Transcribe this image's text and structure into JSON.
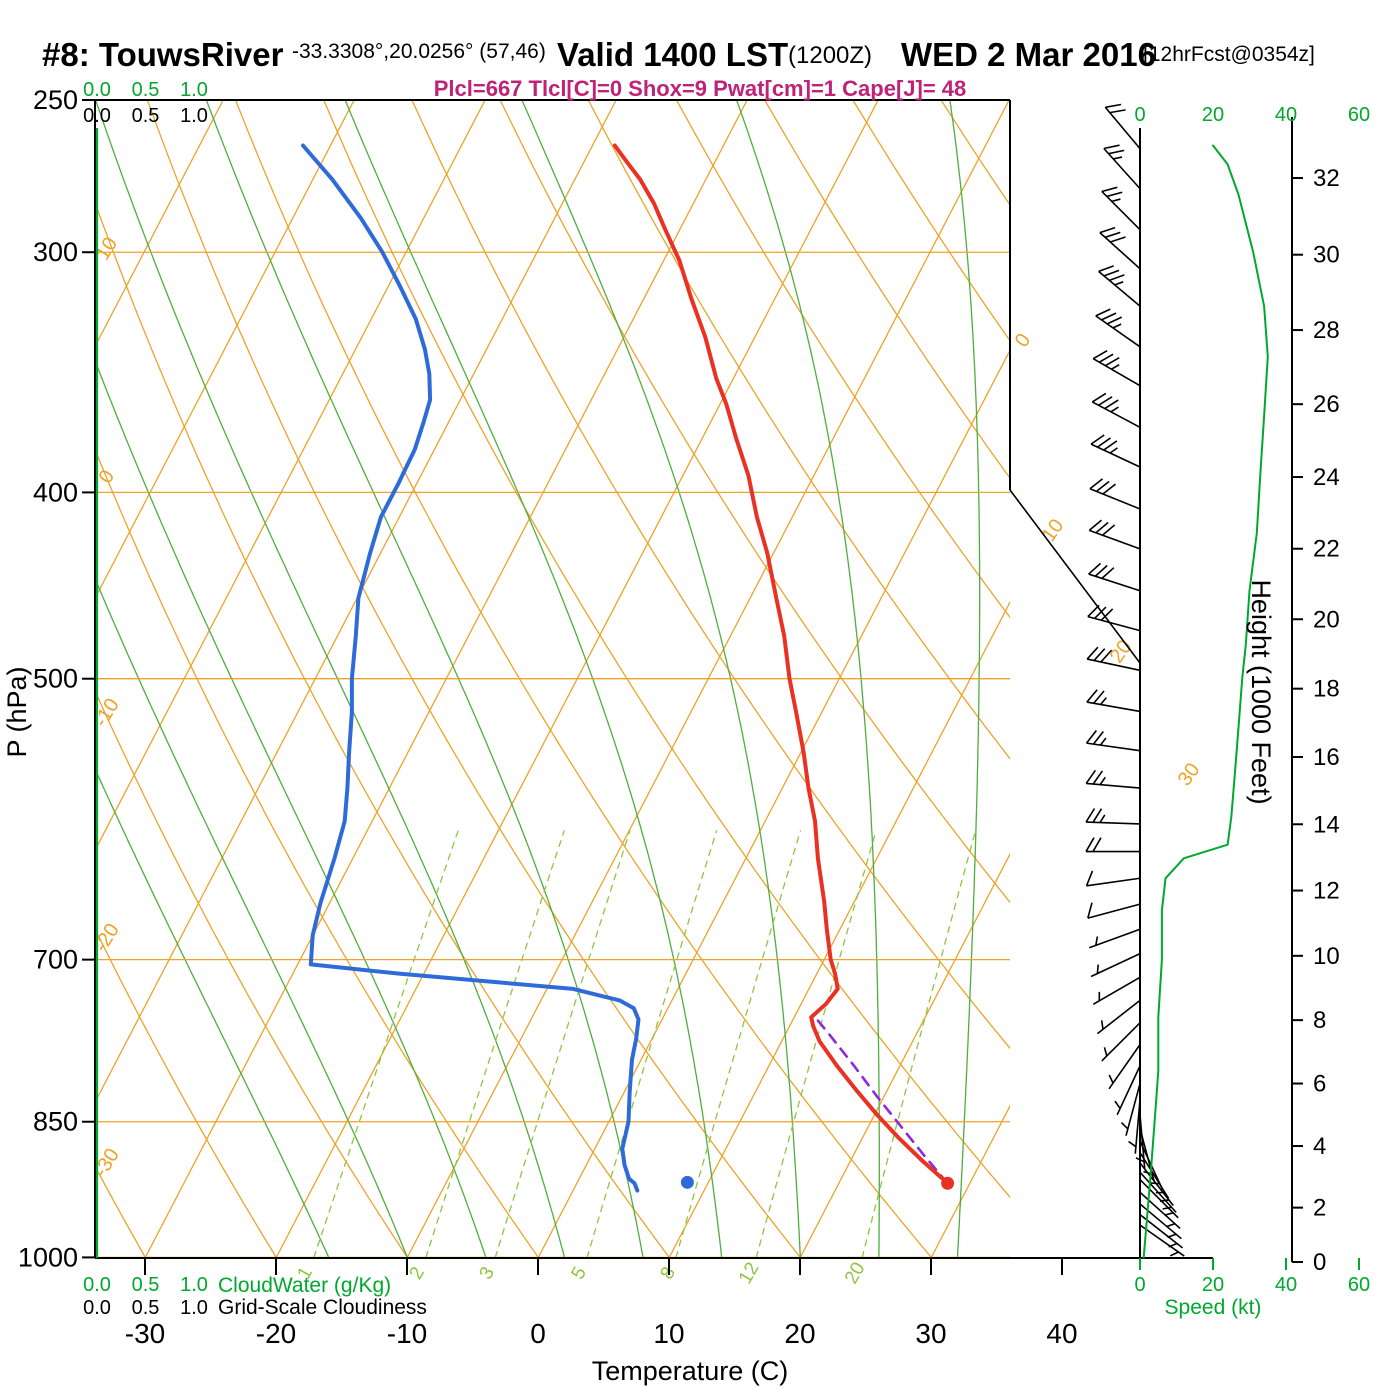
{
  "header": {
    "station": "#8: TouwsRiver",
    "coords": "-33.3308°,20.0256° (57,46)",
    "valid": "Valid 1400 LST",
    "zulu": "(1200Z)",
    "date": "WED 2 Mar 2016",
    "fcst": "[12hrFcst@0354z]",
    "params": "Plcl=667 Tlcl[C]=0 Shox=9 Pwat[cm]=1 Cape[J]= 48"
  },
  "axes": {
    "pressure_label": "P (hPa)",
    "pressure_ticks": [
      250,
      300,
      400,
      500,
      700,
      850,
      1000
    ],
    "temp_label": "Temperature (C)",
    "temp_ticks": [
      -30,
      -20,
      -10,
      0,
      10,
      20,
      30,
      40
    ],
    "height_label": "Height (1000 Feet)",
    "height_ticks": [
      0,
      2,
      4,
      6,
      8,
      10,
      12,
      14,
      16,
      18,
      20,
      22,
      24,
      26,
      28,
      30,
      32
    ],
    "speed_label": "Speed (kt)",
    "speed_ticks": [
      0,
      20,
      40,
      60
    ],
    "cloud_scale": [
      "0.0",
      "0.5",
      "1.0"
    ],
    "cloudwater_label": "CloudWater (g/Kg)",
    "cloudiness_label": "Grid-Scale Cloudiness"
  },
  "chart_data": {
    "type": "skewt",
    "pressure_range_hpa": [
      250,
      1000
    ],
    "temp_axis_range_c": [
      -35,
      40
    ],
    "derived": {
      "lcl_hpa": 667,
      "tlcl_c": 0,
      "showalter": 9,
      "pwat_cm": 1,
      "cape_j": 48
    },
    "temperature_profile": [
      [
        915,
        28.3
      ],
      [
        890,
        25.4
      ],
      [
        866,
        22.7
      ],
      [
        843,
        20.2
      ],
      [
        820,
        17.8
      ],
      [
        795,
        15.2
      ],
      [
        772,
        12.9
      ],
      [
        758,
        11.8
      ],
      [
        750,
        11.3
      ],
      [
        738,
        11.9
      ],
      [
        725,
        12.2
      ],
      [
        712,
        11.4
      ],
      [
        700,
        10.5
      ],
      [
        675,
        9.0
      ],
      [
        653,
        7.7
      ],
      [
        620,
        5.5
      ],
      [
        593,
        3.8
      ],
      [
        570,
        2.0
      ],
      [
        546,
        0.2
      ],
      [
        520,
        -2.0
      ],
      [
        500,
        -3.8
      ],
      [
        475,
        -5.9
      ],
      [
        454,
        -8.0
      ],
      [
        430,
        -10.5
      ],
      [
        412,
        -12.7
      ],
      [
        392,
        -15.0
      ],
      [
        375,
        -17.4
      ],
      [
        360,
        -19.5
      ],
      [
        349,
        -21.3
      ],
      [
        332,
        -23.8
      ],
      [
        317,
        -26.4
      ],
      [
        303,
        -28.8
      ],
      [
        292,
        -31.1
      ],
      [
        283,
        -33.0
      ],
      [
        275,
        -35.0
      ],
      [
        269,
        -36.8
      ],
      [
        264,
        -38.3
      ]
    ],
    "dewpoint_profile": [
      [
        923,
        4.9
      ],
      [
        915,
        4.4
      ],
      [
        910,
        3.8
      ],
      [
        895,
        2.9
      ],
      [
        878,
        2.1
      ],
      [
        850,
        1.5
      ],
      [
        820,
        0.4
      ],
      [
        789,
        -0.7
      ],
      [
        770,
        -1.2
      ],
      [
        752,
        -1.8
      ],
      [
        742,
        -2.6
      ],
      [
        735,
        -4.0
      ],
      [
        725,
        -8.0
      ],
      [
        712,
        -21.8
      ],
      [
        704,
        -29.0
      ],
      [
        680,
        -30.0
      ],
      [
        654,
        -30.7
      ],
      [
        620,
        -31.4
      ],
      [
        593,
        -32.1
      ],
      [
        570,
        -33.2
      ],
      [
        546,
        -34.5
      ],
      [
        520,
        -35.9
      ],
      [
        500,
        -37.2
      ],
      [
        475,
        -38.6
      ],
      [
        454,
        -39.9
      ],
      [
        430,
        -40.8
      ],
      [
        412,
        -41.4
      ],
      [
        395,
        -41.4
      ],
      [
        380,
        -41.5
      ],
      [
        368,
        -41.9
      ],
      [
        358,
        -42.3
      ],
      [
        347,
        -43.4
      ],
      [
        337,
        -44.7
      ],
      [
        325,
        -46.6
      ],
      [
        313,
        -49.0
      ],
      [
        300,
        -51.8
      ],
      [
        288,
        -54.8
      ],
      [
        275,
        -58.5
      ],
      [
        264,
        -62.1
      ]
    ],
    "parcel_trace": [
      [
        915,
        28.3
      ],
      [
        885,
        25.4
      ],
      [
        855,
        22.5
      ],
      [
        825,
        19.5
      ],
      [
        795,
        16.5
      ],
      [
        765,
        13.3
      ],
      [
        750,
        11.6
      ]
    ],
    "surface_temp_point": [
      915,
      28.3
    ],
    "surface_dewpoint_point": [
      914,
      8.4
    ],
    "wind_barbs": [
      [
        265,
        320,
        20
      ],
      [
        278,
        318,
        25
      ],
      [
        292,
        315,
        25
      ],
      [
        306,
        312,
        30
      ],
      [
        320,
        310,
        33
      ],
      [
        336,
        305,
        35
      ],
      [
        352,
        300,
        35
      ],
      [
        370,
        298,
        34
      ],
      [
        388,
        295,
        33
      ],
      [
        408,
        292,
        32
      ],
      [
        428,
        290,
        30
      ],
      [
        450,
        288,
        30
      ],
      [
        472,
        285,
        29
      ],
      [
        495,
        282,
        28
      ],
      [
        520,
        280,
        27
      ],
      [
        545,
        278,
        26
      ],
      [
        570,
        275,
        26
      ],
      [
        595,
        272,
        25
      ],
      [
        615,
        270,
        20
      ],
      [
        635,
        262,
        10
      ],
      [
        655,
        255,
        8
      ],
      [
        675,
        250,
        7
      ],
      [
        695,
        245,
        7
      ],
      [
        715,
        240,
        6
      ],
      [
        735,
        232,
        6
      ],
      [
        755,
        225,
        6
      ],
      [
        775,
        215,
        5
      ],
      [
        795,
        205,
        5
      ],
      [
        812,
        195,
        5
      ],
      [
        828,
        185,
        5
      ],
      [
        843,
        175,
        5
      ],
      [
        857,
        165,
        5
      ],
      [
        870,
        155,
        5
      ],
      [
        882,
        148,
        5
      ],
      [
        893,
        142,
        5
      ],
      [
        903,
        138,
        5
      ],
      [
        911,
        135,
        5
      ],
      [
        925,
        132,
        5
      ],
      [
        938,
        130,
        4
      ],
      [
        950,
        128,
        3
      ],
      [
        962,
        125,
        3
      ]
    ],
    "speed_profile_kt": [
      [
        264,
        20
      ],
      [
        270,
        24
      ],
      [
        280,
        27
      ],
      [
        300,
        31
      ],
      [
        320,
        34
      ],
      [
        340,
        35
      ],
      [
        365,
        34
      ],
      [
        390,
        33
      ],
      [
        420,
        32
      ],
      [
        450,
        30
      ],
      [
        480,
        29
      ],
      [
        500,
        28
      ],
      [
        530,
        27
      ],
      [
        560,
        26
      ],
      [
        590,
        25
      ],
      [
        610,
        24
      ],
      [
        620,
        12
      ],
      [
        635,
        7
      ],
      [
        660,
        6
      ],
      [
        700,
        6
      ],
      [
        750,
        5
      ],
      [
        800,
        5
      ],
      [
        850,
        4
      ],
      [
        900,
        3
      ],
      [
        950,
        2
      ],
      [
        1000,
        1
      ]
    ],
    "grid": {
      "isobar_lines": [
        300,
        400,
        500,
        700,
        850,
        1000
      ],
      "isotherm_values": [
        -80,
        -70,
        -60,
        -50,
        -40,
        -30,
        -20,
        -10,
        0,
        10,
        20,
        30,
        40
      ],
      "dry_adiabat_values": [
        -40,
        -30,
        -20,
        -10,
        0,
        10,
        20,
        30,
        40,
        50,
        60,
        70,
        80,
        90,
        100,
        110,
        120
      ],
      "moist_adiabat_values": [
        -16,
        -10,
        -4,
        2,
        8,
        14,
        20,
        26,
        32
      ],
      "mixing_ratio_values": [
        1,
        2,
        3,
        5,
        8,
        12,
        20
      ],
      "isotherm_edge_labels": [
        0,
        10,
        20,
        30
      ],
      "dry_adiabat_edge_labels": [
        10,
        0,
        -10,
        -20,
        -30
      ]
    },
    "colors": {
      "grid_orange": "#eda32b",
      "green_solid": "#4fae3f",
      "green_dashed": "#8dc63f",
      "text_green": "#00a82d",
      "temperature_red": "#ea3223",
      "dewpoint_blue": "#2e6bd8",
      "parcel_purple": "#8a2be2",
      "params_magenta": "#bf2277",
      "frame_black": "#000000"
    }
  }
}
